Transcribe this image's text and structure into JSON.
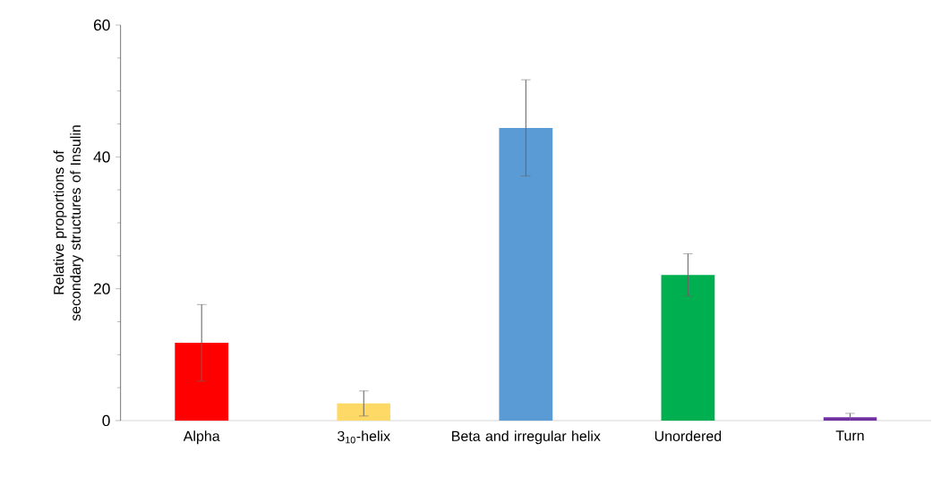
{
  "chart_data": {
    "type": "bar",
    "ylabel": "Relative proportions of secondary structures of Insulin",
    "categories": [
      "Alpha",
      "3$_{10}$-helix",
      "Beta and irregular helix",
      "Unordered",
      "Turn"
    ],
    "values": [
      11.8,
      2.6,
      44.4,
      22.1,
      0.5
    ],
    "errors": [
      5.8,
      1.9,
      7.3,
      3.2,
      0.6
    ],
    "colors": [
      "#ff0000",
      "#ffd966",
      "#5b9bd5",
      "#00b050",
      "#7030a0"
    ],
    "ylim": [
      0,
      60
    ],
    "yticks": [
      0,
      20,
      40,
      60
    ]
  }
}
